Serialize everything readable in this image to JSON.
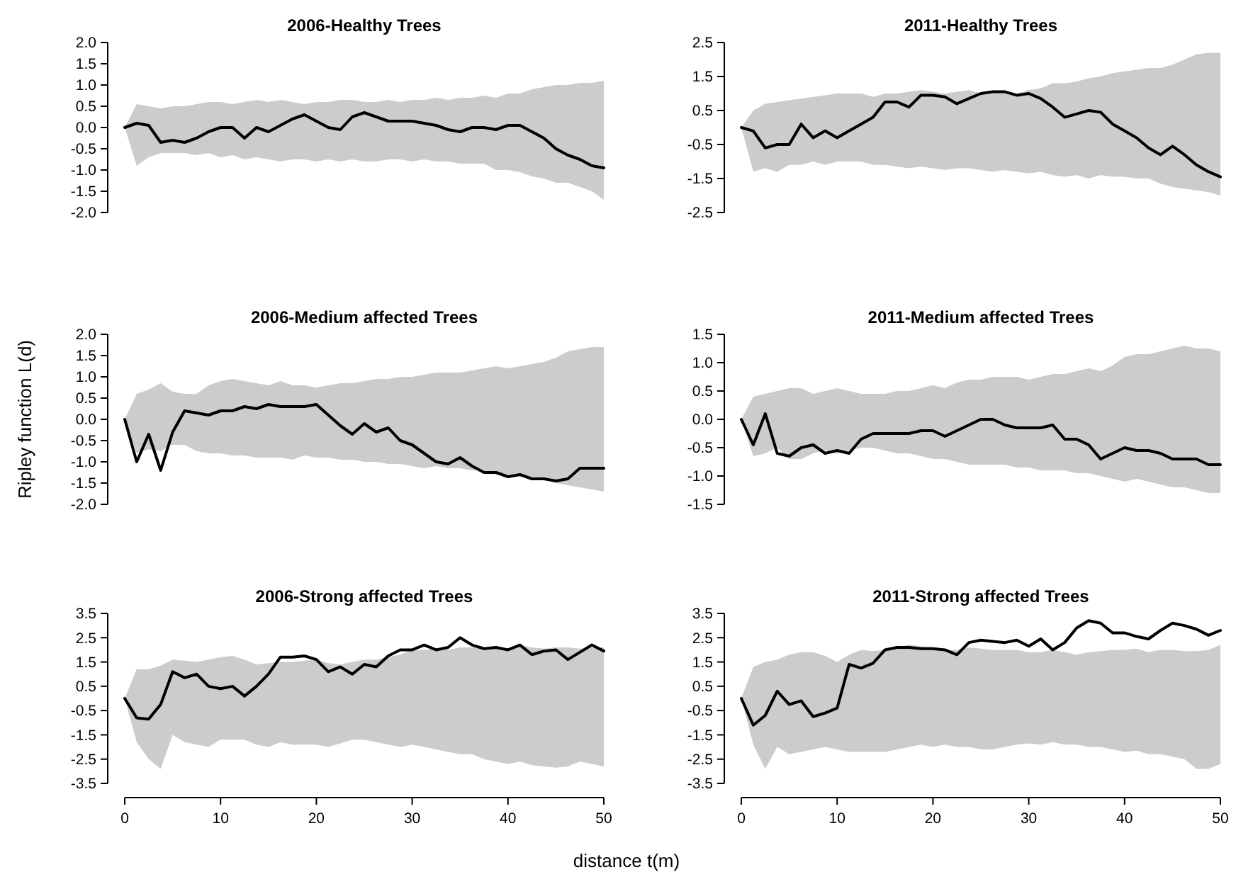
{
  "chart_data": [
    {
      "type": "line",
      "title": "2006-Healthy Trees",
      "tick_labels": "y",
      "xlim": [
        0,
        50
      ],
      "ylim": [
        -2,
        2
      ],
      "yticks": [
        {
          "value": -2,
          "label": "-2.0"
        },
        -1.5,
        {
          "value": -1,
          "label": "-1.0"
        },
        -0.5,
        {
          "value": 0,
          "label": "0.0"
        },
        0.5,
        {
          "value": 1,
          "label": "1.0"
        },
        1.5,
        {
          "value": 2,
          "label": "2.0"
        }
      ],
      "x": [
        0,
        1.25,
        2.5,
        3.75,
        5,
        6.25,
        7.5,
        8.75,
        10,
        11.25,
        12.5,
        13.75,
        15,
        16.25,
        17.5,
        18.75,
        20,
        21.25,
        22.5,
        23.75,
        25,
        26.25,
        27.5,
        28.75,
        30,
        31.25,
        32.5,
        33.75,
        35,
        36.25,
        37.5,
        38.75,
        40,
        41.25,
        42.5,
        43.75,
        45,
        46.25,
        47.5,
        48.75,
        50
      ],
      "series": [
        {
          "color": "#000000",
          "values": [
            0,
            0.1,
            0.05,
            -0.35,
            -0.3,
            -0.35,
            -0.25,
            -0.1,
            0,
            0,
            -0.25,
            0,
            -0.1,
            0.05,
            0.2,
            0.3,
            0.15,
            0.0,
            -0.05,
            0.25,
            0.35,
            0.25,
            0.15,
            0.15,
            0.15,
            0.1,
            0.05,
            -0.05,
            -0.1,
            0.0,
            0.0,
            -0.05,
            0.05,
            0.05,
            -0.1,
            -0.25,
            -0.5,
            -0.65,
            -0.75,
            -0.9,
            -0.95
          ],
          "upper": [
            0,
            0.55,
            0.5,
            0.45,
            0.5,
            0.5,
            0.55,
            0.6,
            0.6,
            0.55,
            0.6,
            0.65,
            0.6,
            0.65,
            0.6,
            0.55,
            0.6,
            0.6,
            0.65,
            0.65,
            0.6,
            0.6,
            0.65,
            0.6,
            0.65,
            0.65,
            0.7,
            0.65,
            0.7,
            0.7,
            0.75,
            0.7,
            0.8,
            0.8,
            0.9,
            0.95,
            1.0,
            1.0,
            1.05,
            1.05,
            1.1
          ],
          "lower": [
            0,
            -0.9,
            -0.7,
            -0.6,
            -0.6,
            -0.6,
            -0.65,
            -0.6,
            -0.7,
            -0.65,
            -0.75,
            -0.7,
            -0.75,
            -0.8,
            -0.75,
            -0.75,
            -0.8,
            -0.75,
            -0.8,
            -0.75,
            -0.8,
            -0.8,
            -0.75,
            -0.75,
            -0.8,
            -0.75,
            -0.8,
            -0.8,
            -0.85,
            -0.85,
            -0.85,
            -1.0,
            -1.0,
            -1.05,
            -1.15,
            -1.2,
            -1.3,
            -1.3,
            -1.4,
            -1.5,
            -1.7
          ]
        }
      ]
    },
    {
      "type": "line",
      "title": "2011-Healthy Trees",
      "tick_labels": "y",
      "xlim": [
        0,
        50
      ],
      "ylim": [
        -2.5,
        2.5
      ],
      "yticks": [
        -2.5,
        -1.5,
        -0.5,
        0.5,
        1.5,
        2.5
      ],
      "x": [
        0,
        1.25,
        2.5,
        3.75,
        5,
        6.25,
        7.5,
        8.75,
        10,
        11.25,
        12.5,
        13.75,
        15,
        16.25,
        17.5,
        18.75,
        20,
        21.25,
        22.5,
        23.75,
        25,
        26.25,
        27.5,
        28.75,
        30,
        31.25,
        32.5,
        33.75,
        35,
        36.25,
        37.5,
        38.75,
        40,
        41.25,
        42.5,
        43.75,
        45,
        46.25,
        47.5,
        48.75,
        50
      ],
      "series": [
        {
          "color": "#000000",
          "values": [
            0,
            -0.1,
            -0.6,
            -0.5,
            -0.5,
            0.1,
            -0.3,
            -0.1,
            -0.3,
            -0.1,
            0.1,
            0.3,
            0.75,
            0.75,
            0.6,
            0.95,
            0.95,
            0.9,
            0.7,
            0.85,
            1.0,
            1.05,
            1.05,
            0.95,
            1.0,
            0.85,
            0.6,
            0.3,
            0.4,
            0.5,
            0.45,
            0.1,
            -0.1,
            -0.3,
            -0.6,
            -0.8,
            -0.55,
            -0.8,
            -1.1,
            -1.3,
            -1.45
          ],
          "upper": [
            0,
            0.5,
            0.7,
            0.75,
            0.8,
            0.85,
            0.9,
            0.95,
            1.0,
            1.0,
            1.0,
            0.9,
            1.0,
            1.0,
            1.05,
            1.1,
            1.05,
            1.0,
            1.05,
            1.1,
            1.0,
            1.05,
            1.05,
            1.0,
            1.1,
            1.15,
            1.3,
            1.3,
            1.35,
            1.45,
            1.5,
            1.6,
            1.65,
            1.7,
            1.75,
            1.75,
            1.85,
            2.0,
            2.15,
            2.2,
            2.2
          ],
          "lower": [
            0,
            -1.3,
            -1.2,
            -1.3,
            -1.1,
            -1.1,
            -1.0,
            -1.1,
            -1.0,
            -1.0,
            -1.0,
            -1.1,
            -1.1,
            -1.15,
            -1.2,
            -1.15,
            -1.2,
            -1.25,
            -1.2,
            -1.2,
            -1.25,
            -1.3,
            -1.25,
            -1.3,
            -1.35,
            -1.3,
            -1.4,
            -1.45,
            -1.4,
            -1.5,
            -1.4,
            -1.45,
            -1.45,
            -1.5,
            -1.5,
            -1.65,
            -1.75,
            -1.8,
            -1.85,
            -1.9,
            -2.0
          ]
        }
      ]
    },
    {
      "type": "line",
      "title": "2006-Medium affected Trees",
      "ylabel": "Ripley function L(d)",
      "tick_labels": "y",
      "xlim": [
        0,
        50
      ],
      "ylim": [
        -2,
        2
      ],
      "yticks": [
        {
          "value": -2,
          "label": "-2.0"
        },
        -1.5,
        {
          "value": -1,
          "label": "-1.0"
        },
        -0.5,
        {
          "value": 0,
          "label": "0.0"
        },
        0.5,
        {
          "value": 1,
          "label": "1.0"
        },
        1.5,
        {
          "value": 2,
          "label": "2.0"
        }
      ],
      "x": [
        0,
        1.25,
        2.5,
        3.75,
        5,
        6.25,
        7.5,
        8.75,
        10,
        11.25,
        12.5,
        13.75,
        15,
        16.25,
        17.5,
        18.75,
        20,
        21.25,
        22.5,
        23.75,
        25,
        26.25,
        27.5,
        28.75,
        30,
        31.25,
        32.5,
        33.75,
        35,
        36.25,
        37.5,
        38.75,
        40,
        41.25,
        42.5,
        43.75,
        45,
        46.25,
        47.5,
        48.75,
        50
      ],
      "series": [
        {
          "color": "#000000",
          "values": [
            0,
            -1.0,
            -0.35,
            -1.2,
            -0.3,
            0.2,
            0.15,
            0.1,
            0.2,
            0.2,
            0.3,
            0.25,
            0.35,
            0.3,
            0.3,
            0.3,
            0.35,
            0.1,
            -0.15,
            -0.35,
            -0.1,
            -0.3,
            -0.2,
            -0.5,
            -0.6,
            -0.8,
            -1.0,
            -1.05,
            -0.9,
            -1.1,
            -1.25,
            -1.25,
            -1.35,
            -1.3,
            -1.4,
            -1.4,
            -1.45,
            -1.4,
            -1.15,
            -1.15,
            -1.15
          ],
          "upper": [
            0,
            0.6,
            0.7,
            0.85,
            0.65,
            0.6,
            0.6,
            0.8,
            0.9,
            0.95,
            0.9,
            0.85,
            0.8,
            0.9,
            0.8,
            0.8,
            0.75,
            0.8,
            0.85,
            0.85,
            0.9,
            0.95,
            0.95,
            1.0,
            1.0,
            1.05,
            1.1,
            1.1,
            1.1,
            1.15,
            1.2,
            1.25,
            1.2,
            1.25,
            1.3,
            1.35,
            1.45,
            1.6,
            1.65,
            1.7,
            1.7
          ],
          "lower": [
            0,
            -0.8,
            -0.7,
            -0.75,
            -0.6,
            -0.6,
            -0.75,
            -0.8,
            -0.8,
            -0.85,
            -0.85,
            -0.9,
            -0.9,
            -0.9,
            -0.95,
            -0.85,
            -0.9,
            -0.9,
            -0.95,
            -0.95,
            -1.0,
            -1.0,
            -1.05,
            -1.05,
            -1.1,
            -1.15,
            -1.1,
            -1.15,
            -1.15,
            -1.2,
            -1.2,
            -1.3,
            -1.3,
            -1.35,
            -1.35,
            -1.4,
            -1.5,
            -1.55,
            -1.6,
            -1.65,
            -1.7
          ]
        }
      ]
    },
    {
      "type": "line",
      "title": "2011-Medium affected Trees",
      "tick_labels": "y",
      "xlim": [
        0,
        50
      ],
      "ylim": [
        -1.5,
        1.5
      ],
      "yticks": [
        -1.5,
        {
          "value": -1,
          "label": "-1.0"
        },
        -0.5,
        {
          "value": 0,
          "label": "0.0"
        },
        0.5,
        {
          "value": 1,
          "label": "1.0"
        },
        1.5
      ],
      "x": [
        0,
        1.25,
        2.5,
        3.75,
        5,
        6.25,
        7.5,
        8.75,
        10,
        11.25,
        12.5,
        13.75,
        15,
        16.25,
        17.5,
        18.75,
        20,
        21.25,
        22.5,
        23.75,
        25,
        26.25,
        27.5,
        28.75,
        30,
        31.25,
        32.5,
        33.75,
        35,
        36.25,
        37.5,
        38.75,
        40,
        41.25,
        42.5,
        43.75,
        45,
        46.25,
        47.5,
        48.75,
        50
      ],
      "series": [
        {
          "color": "#000000",
          "values": [
            0,
            -0.45,
            0.1,
            -0.6,
            -0.65,
            -0.5,
            -0.45,
            -0.6,
            -0.55,
            -0.6,
            -0.35,
            -0.25,
            -0.25,
            -0.25,
            -0.25,
            -0.2,
            -0.2,
            -0.3,
            -0.2,
            -0.1,
            0.0,
            0.0,
            -0.1,
            -0.15,
            -0.15,
            -0.15,
            -0.1,
            -0.35,
            -0.35,
            -0.45,
            -0.7,
            -0.6,
            -0.5,
            -0.55,
            -0.55,
            -0.6,
            -0.7,
            -0.7,
            -0.7,
            -0.8,
            -0.8
          ],
          "upper": [
            0,
            0.4,
            0.45,
            0.5,
            0.55,
            0.55,
            0.45,
            0.5,
            0.55,
            0.5,
            0.45,
            0.45,
            0.45,
            0.5,
            0.5,
            0.55,
            0.6,
            0.55,
            0.65,
            0.7,
            0.7,
            0.75,
            0.75,
            0.75,
            0.7,
            0.75,
            0.8,
            0.8,
            0.85,
            0.9,
            0.85,
            0.95,
            1.1,
            1.15,
            1.15,
            1.2,
            1.25,
            1.3,
            1.25,
            1.25,
            1.2
          ],
          "lower": [
            0,
            -0.65,
            -0.6,
            -0.5,
            -0.7,
            -0.7,
            -0.6,
            -0.55,
            -0.6,
            -0.55,
            -0.5,
            -0.5,
            -0.55,
            -0.6,
            -0.6,
            -0.65,
            -0.7,
            -0.7,
            -0.75,
            -0.8,
            -0.8,
            -0.8,
            -0.8,
            -0.85,
            -0.85,
            -0.9,
            -0.9,
            -0.9,
            -0.95,
            -0.95,
            -1.0,
            -1.05,
            -1.1,
            -1.05,
            -1.1,
            -1.15,
            -1.2,
            -1.2,
            -1.25,
            -1.3,
            -1.3
          ]
        }
      ]
    },
    {
      "type": "line",
      "title": "2006-Strong affected Trees",
      "xlabel": "distance t(m)",
      "xlim": [
        0,
        50
      ],
      "xticks": [
        0,
        10,
        20,
        30,
        40,
        50
      ],
      "ylim": [
        -3.5,
        3.5
      ],
      "yticks": [
        -3.5,
        -2.5,
        -1.5,
        -0.5,
        0.5,
        1.5,
        2.5,
        3.5
      ],
      "x": [
        0,
        1.25,
        2.5,
        3.75,
        5,
        6.25,
        7.5,
        8.75,
        10,
        11.25,
        12.5,
        13.75,
        15,
        16.25,
        17.5,
        18.75,
        20,
        21.25,
        22.5,
        23.75,
        25,
        26.25,
        27.5,
        28.75,
        30,
        31.25,
        32.5,
        33.75,
        35,
        36.25,
        37.5,
        38.75,
        40,
        41.25,
        42.5,
        43.75,
        45,
        46.25,
        47.5,
        48.75,
        50
      ],
      "series": [
        {
          "color": "#000000",
          "values": [
            0,
            -0.8,
            -0.85,
            -0.25,
            1.1,
            0.85,
            1.0,
            0.5,
            0.4,
            0.5,
            0.1,
            0.5,
            1.0,
            1.7,
            1.7,
            1.75,
            1.6,
            1.1,
            1.3,
            1.0,
            1.4,
            1.3,
            1.75,
            2.0,
            2.0,
            2.2,
            2.0,
            2.1,
            2.5,
            2.2,
            2.05,
            2.1,
            2.0,
            2.2,
            1.8,
            1.95,
            2.0,
            1.6,
            1.9,
            2.2,
            1.95
          ],
          "upper": [
            0,
            1.2,
            1.2,
            1.35,
            1.6,
            1.55,
            1.5,
            1.6,
            1.7,
            1.75,
            1.6,
            1.4,
            1.45,
            1.5,
            1.5,
            1.55,
            1.6,
            1.45,
            1.4,
            1.5,
            1.6,
            1.6,
            1.7,
            1.8,
            2.0,
            2.0,
            2.05,
            2.0,
            2.1,
            2.1,
            2.05,
            2.1,
            2.05,
            2.2,
            2.1,
            2.05,
            2.1,
            2.1,
            2.05,
            2.1,
            2.1
          ],
          "lower": [
            0,
            -1.8,
            -2.5,
            -2.9,
            -1.5,
            -1.8,
            -1.9,
            -2.0,
            -1.7,
            -1.7,
            -1.7,
            -1.9,
            -2.0,
            -1.8,
            -1.9,
            -1.9,
            -1.9,
            -2.0,
            -1.85,
            -1.7,
            -1.7,
            -1.8,
            -1.9,
            -2.0,
            -1.9,
            -2.0,
            -2.1,
            -2.2,
            -2.3,
            -2.3,
            -2.5,
            -2.6,
            -2.7,
            -2.6,
            -2.75,
            -2.8,
            -2.85,
            -2.8,
            -2.6,
            -2.7,
            -2.8
          ]
        }
      ]
    },
    {
      "type": "line",
      "title": "2011-Strong affected Trees",
      "xlim": [
        0,
        50
      ],
      "xticks": [
        0,
        10,
        20,
        30,
        40,
        50
      ],
      "ylim": [
        -3.5,
        3.5
      ],
      "yticks": [
        -3.5,
        -2.5,
        -1.5,
        -0.5,
        0.5,
        1.5,
        2.5,
        3.5
      ],
      "x": [
        0,
        1.25,
        2.5,
        3.75,
        5,
        6.25,
        7.5,
        8.75,
        10,
        11.25,
        12.5,
        13.75,
        15,
        16.25,
        17.5,
        18.75,
        20,
        21.25,
        22.5,
        23.75,
        25,
        26.25,
        27.5,
        28.75,
        30,
        31.25,
        32.5,
        33.75,
        35,
        36.25,
        37.5,
        38.75,
        40,
        41.25,
        42.5,
        43.75,
        45,
        46.25,
        47.5,
        48.75,
        50
      ],
      "series": [
        {
          "color": "#000000",
          "values": [
            0,
            -1.1,
            -0.7,
            0.3,
            -0.25,
            -0.1,
            -0.75,
            -0.6,
            -0.4,
            1.4,
            1.25,
            1.45,
            2.0,
            2.1,
            2.1,
            2.05,
            2.05,
            2.0,
            1.8,
            2.3,
            2.4,
            2.35,
            2.3,
            2.4,
            2.15,
            2.45,
            2.0,
            2.3,
            2.9,
            3.2,
            3.1,
            2.7,
            2.7,
            2.55,
            2.45,
            2.8,
            3.1,
            3.0,
            2.85,
            2.6,
            2.8
          ],
          "upper": [
            0,
            1.3,
            1.5,
            1.6,
            1.8,
            1.9,
            1.9,
            1.75,
            1.5,
            1.8,
            2.0,
            1.95,
            2.0,
            2.1,
            2.2,
            2.15,
            2.1,
            2.0,
            2.0,
            2.1,
            2.05,
            2.0,
            2.0,
            2.0,
            1.9,
            1.9,
            2.0,
            1.9,
            1.8,
            1.9,
            1.95,
            2.0,
            2.0,
            2.05,
            1.9,
            2.0,
            2.0,
            1.95,
            1.95,
            2.0,
            2.2
          ],
          "lower": [
            0,
            -1.9,
            -2.9,
            -2.0,
            -2.3,
            -2.2,
            -2.1,
            -2.0,
            -2.1,
            -2.2,
            -2.2,
            -2.2,
            -2.2,
            -2.1,
            -2.0,
            -1.9,
            -2.0,
            -1.9,
            -2.0,
            -2.0,
            -2.1,
            -2.1,
            -2.0,
            -1.9,
            -1.85,
            -1.9,
            -1.8,
            -1.9,
            -1.9,
            -2.0,
            -2.0,
            -2.1,
            -2.2,
            -2.15,
            -2.3,
            -2.3,
            -2.4,
            -2.5,
            -2.9,
            -2.9,
            -2.7
          ]
        }
      ]
    }
  ]
}
